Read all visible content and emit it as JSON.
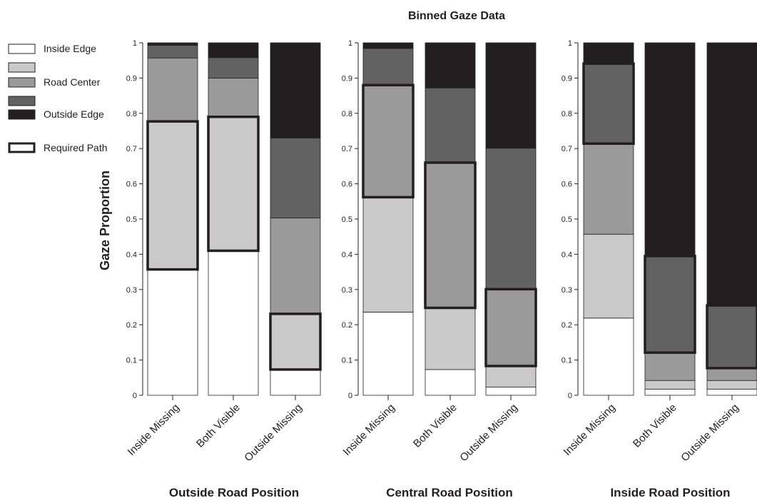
{
  "title": "Binned Gaze Data",
  "ylabel": "Gaze Proportion",
  "legend": {
    "items": [
      {
        "label": "Inside Edge",
        "color": "#ffffff"
      },
      {
        "label": "",
        "color": "#c9c9c9"
      },
      {
        "label": "Road Center",
        "color": "#9a9a9a"
      },
      {
        "label": "",
        "color": "#626262"
      },
      {
        "label": "Outside Edge",
        "color": "#231f20"
      }
    ],
    "required_path_label": "Required Path"
  },
  "chart_data": [
    {
      "type": "bar",
      "stacked": true,
      "xlabel": "Outside Road Position",
      "ylim": [
        0,
        1
      ],
      "yticks": [
        "0",
        "0.1",
        "0.2",
        "0.3",
        "0.4",
        "0.5",
        "0.6",
        "0.7",
        "0.8",
        "0.9",
        "1"
      ],
      "categories": [
        "Inside Missing",
        "Both Visible",
        "Outside Missing"
      ],
      "series": [
        {
          "name": "Outside Edge",
          "values": [
            0.357,
            0.41,
            0.073
          ]
        },
        {
          "name": "",
          "values": [
            0.42,
            0.38,
            0.158
          ]
        },
        {
          "name": "Road Center",
          "values": [
            0.18,
            0.11,
            0.272
          ]
        },
        {
          "name": "",
          "values": [
            0.036,
            0.058,
            0.227
          ]
        },
        {
          "name": "Inside Edge",
          "values": [
            0.007,
            0.042,
            0.27
          ]
        }
      ],
      "required_path": [
        [
          0.357,
          0.777
        ],
        [
          0.41,
          0.79
        ],
        [
          0.073,
          0.231
        ]
      ]
    },
    {
      "type": "bar",
      "stacked": true,
      "xlabel": "Central Road Position",
      "ylim": [
        0,
        1
      ],
      "yticks": [
        "0",
        "0.1",
        "0.2",
        "0.3",
        "0.4",
        "0.5",
        "0.6",
        "0.7",
        "0.8",
        "0.9",
        "1"
      ],
      "categories": [
        "Inside Missing",
        "Both Visible",
        "Outside Missing"
      ],
      "series": [
        {
          "name": "Outside Edge",
          "values": [
            0.236,
            0.073,
            0.023
          ]
        },
        {
          "name": "",
          "values": [
            0.326,
            0.175,
            0.06
          ]
        },
        {
          "name": "Road Center",
          "values": [
            0.318,
            0.412,
            0.218
          ]
        },
        {
          "name": "",
          "values": [
            0.104,
            0.212,
            0.4
          ]
        },
        {
          "name": "Inside Edge",
          "values": [
            0.016,
            0.128,
            0.299
          ]
        }
      ],
      "required_path": [
        [
          0.562,
          0.88
        ],
        [
          0.248,
          0.66
        ],
        [
          0.083,
          0.301
        ]
      ]
    },
    {
      "type": "bar",
      "stacked": true,
      "xlabel": "Inside Road Position",
      "ylim": [
        0,
        1
      ],
      "yticks": [
        "0",
        "0.1",
        "0.2",
        "0.3",
        "0.4",
        "0.5",
        "0.6",
        "0.7",
        "0.8",
        "0.9",
        "1"
      ],
      "categories": [
        "Inside Missing",
        "Both Visible",
        "Outside Missing"
      ],
      "series": [
        {
          "name": "Outside Edge",
          "values": [
            0.219,
            0.017,
            0.017
          ]
        },
        {
          "name": "",
          "values": [
            0.238,
            0.025,
            0.025
          ]
        },
        {
          "name": "Road Center",
          "values": [
            0.257,
            0.079,
            0.035
          ]
        },
        {
          "name": "",
          "values": [
            0.227,
            0.274,
            0.178
          ]
        },
        {
          "name": "Inside Edge",
          "values": [
            0.059,
            0.605,
            0.745
          ]
        }
      ],
      "required_path": [
        [
          0.714,
          0.941
        ],
        [
          0.121,
          0.395
        ],
        [
          0.077,
          0.255
        ]
      ]
    }
  ]
}
